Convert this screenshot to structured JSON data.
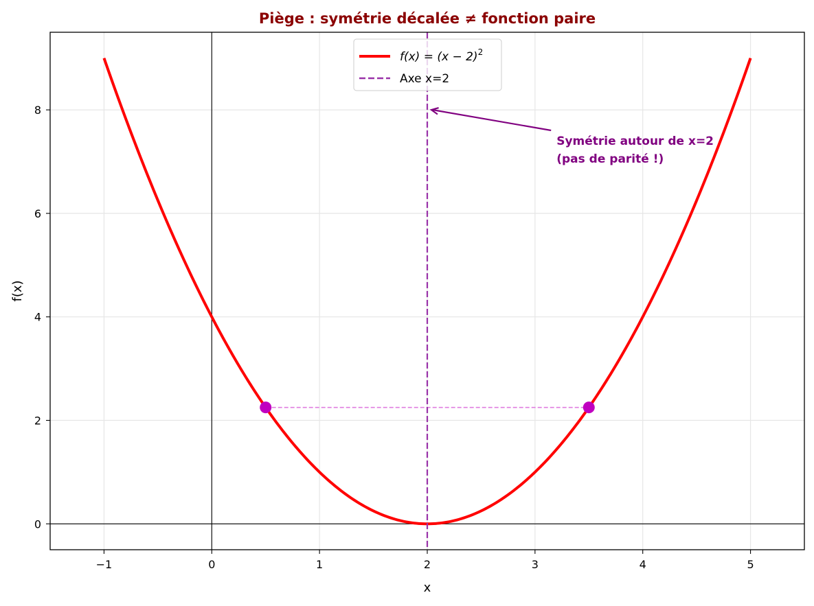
{
  "chart_data": {
    "type": "line",
    "title": "Piège : symétrie décalée ≠ fonction paire",
    "title_color": "#8b0000",
    "xlabel": "x",
    "ylabel": "f(x)",
    "xlim": [
      -1.5,
      5.5
    ],
    "ylim": [
      -0.5,
      9.5
    ],
    "grid": true,
    "x_ticks": [
      -1,
      0,
      1,
      2,
      3,
      4,
      5
    ],
    "x_tick_labels": [
      "−1",
      "0",
      "1",
      "2",
      "3",
      "4",
      "5"
    ],
    "y_ticks": [
      0,
      2,
      4,
      6,
      8
    ],
    "y_tick_labels": [
      "0",
      "2",
      "4",
      "6",
      "8"
    ],
    "legend_position": "upper center",
    "series": [
      {
        "name": "f(x) = (x − 2)²",
        "color": "#ff0000",
        "style": "solid",
        "x": [
          -1,
          -0.5,
          0,
          0.5,
          1,
          1.5,
          2,
          2.5,
          3,
          3.5,
          4,
          4.5,
          5
        ],
        "values": [
          9,
          6.25,
          4,
          2.25,
          1,
          0.25,
          0,
          0.25,
          1,
          2.25,
          4,
          6.25,
          9
        ]
      },
      {
        "name": "Axe x=2",
        "color": "#9932a8",
        "style": "dashed",
        "type": "vline",
        "x": 2
      }
    ],
    "points": [
      {
        "x": 0.5,
        "y": 2.25,
        "color": "#c000c0"
      },
      {
        "x": 3.5,
        "y": 2.25,
        "color": "#c000c0"
      }
    ],
    "connector": {
      "x": [
        0.5,
        3.5
      ],
      "y": 2.25,
      "color": "#e07ee0",
      "style": "dashed"
    },
    "reference_lines": [
      {
        "axis": "x",
        "value": 0,
        "color": "#000000"
      },
      {
        "axis": "y",
        "value": 0,
        "color": "#000000"
      }
    ],
    "annotations": [
      {
        "text_lines": [
          "Symétrie autour de x=2",
          "(pas de parité !)"
        ],
        "xy": [
          2,
          8
        ],
        "xytext": [
          3.2,
          7.0
        ],
        "color": "#800080",
        "arrow": true
      }
    ]
  },
  "legend": {
    "items": [
      {
        "label_prefix": "f(x) = (x − 2)",
        "label_sup": "2"
      },
      {
        "label": "Axe x=2"
      }
    ]
  }
}
